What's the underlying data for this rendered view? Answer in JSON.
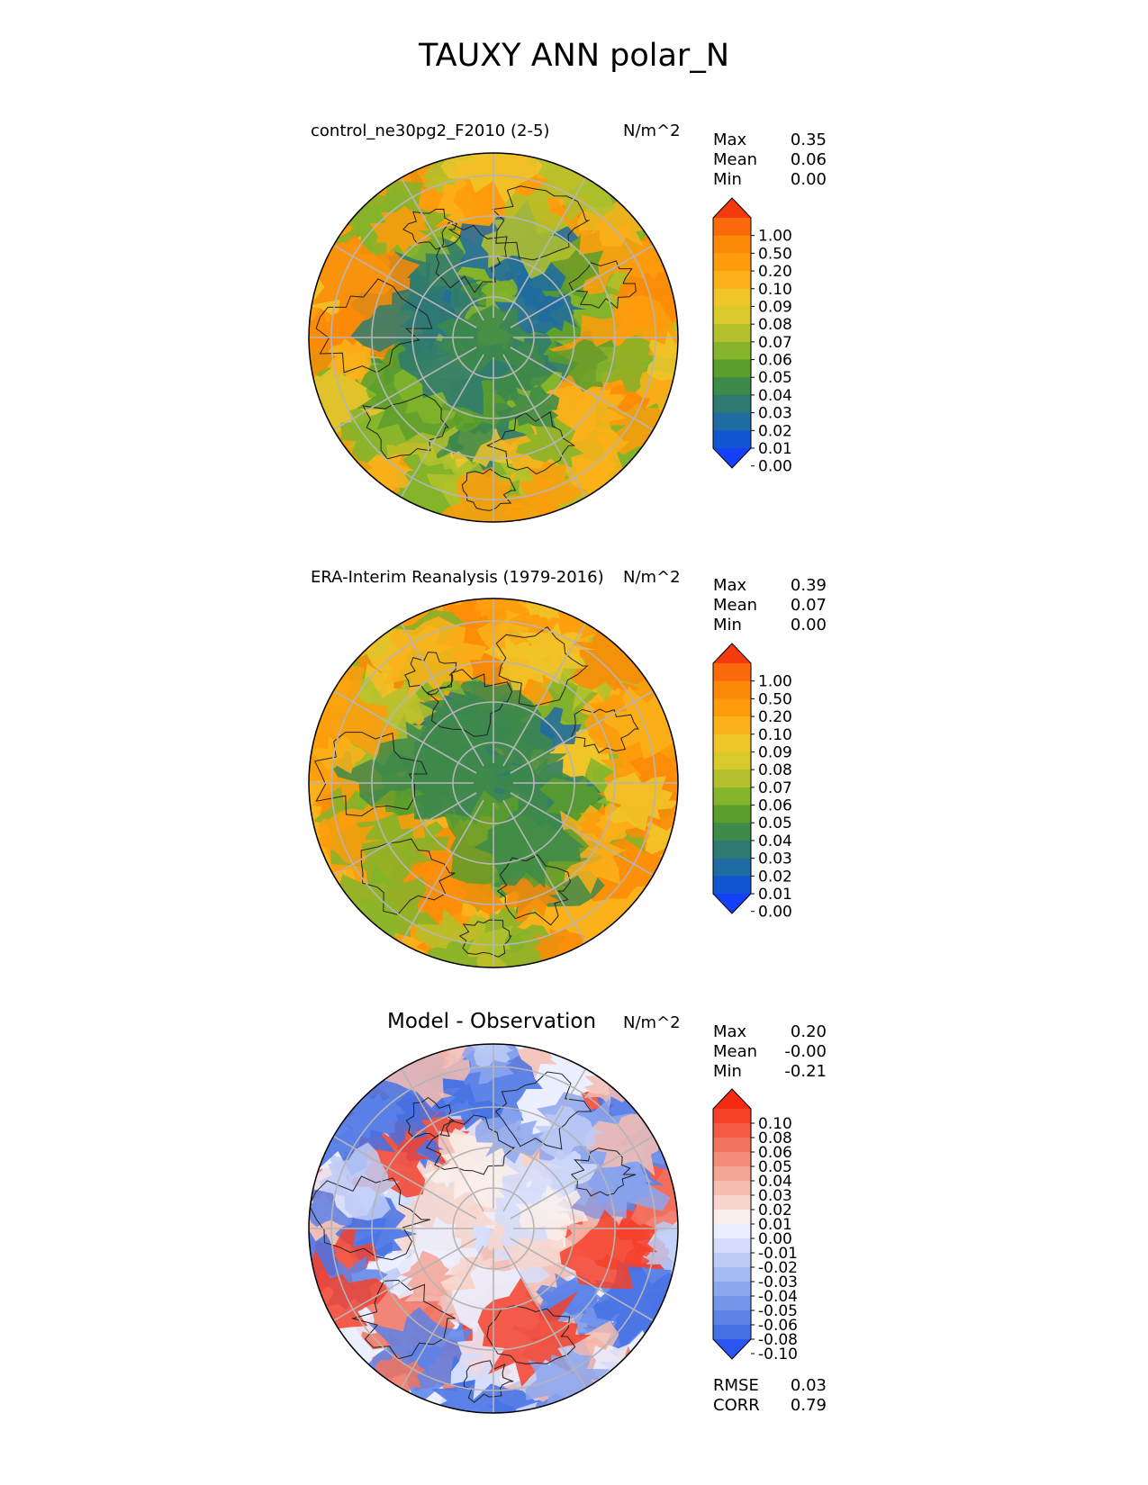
{
  "title": "TAUXY ANN polar_N",
  "chart_data": [
    {
      "type": "heatmap",
      "projection": "polar stereographic, north pole",
      "title": "control_ne30pg2_F2010 (2-5)",
      "units": "N/m^2",
      "stats": [
        {
          "label": "Max",
          "value": "0.35"
        },
        {
          "label": "Mean",
          "value": "0.06"
        },
        {
          "label": "Min",
          "value": "0.00"
        }
      ],
      "colorbar": {
        "levels": [
          "1.00",
          "0.50",
          "0.20",
          "0.10",
          "0.09",
          "0.08",
          "0.07",
          "0.06",
          "0.05",
          "0.04",
          "0.03",
          "0.02",
          "0.01",
          "0.00"
        ],
        "colors": [
          "#f53a0e",
          "#fb6a0a",
          "#fd8a07",
          "#fe9c0c",
          "#fbb11a",
          "#f0c52a",
          "#d9ca2c",
          "#b3c22c",
          "#84b42a",
          "#5a9e2c",
          "#3e8a4a",
          "#2f7a70",
          "#1f6ba2",
          "#1255d0",
          "#1440fa"
        ]
      },
      "extend": "both"
    },
    {
      "type": "heatmap",
      "projection": "polar stereographic, north pole",
      "title": "ERA-Interim Reanalysis (1979-2016)",
      "units": "N/m^2",
      "stats": [
        {
          "label": "Max",
          "value": "0.39"
        },
        {
          "label": "Mean",
          "value": "0.07"
        },
        {
          "label": "Min",
          "value": "0.00"
        }
      ],
      "colorbar": {
        "levels": [
          "1.00",
          "0.50",
          "0.20",
          "0.10",
          "0.09",
          "0.08",
          "0.07",
          "0.06",
          "0.05",
          "0.04",
          "0.03",
          "0.02",
          "0.01",
          "0.00"
        ],
        "colors": [
          "#f53a0e",
          "#fb6a0a",
          "#fd8a07",
          "#fe9c0c",
          "#fbb11a",
          "#f0c52a",
          "#d9ca2c",
          "#b3c22c",
          "#84b42a",
          "#5a9e2c",
          "#3e8a4a",
          "#2f7a70",
          "#1f6ba2",
          "#1255d0",
          "#1440fa"
        ]
      },
      "extend": "both"
    },
    {
      "type": "heatmap",
      "projection": "polar stereographic, north pole",
      "title": "Model - Observation",
      "units": "N/m^2",
      "stats": [
        {
          "label": "Max",
          "value": "0.20"
        },
        {
          "label": "Mean",
          "value": "-0.00"
        },
        {
          "label": "Min",
          "value": "-0.21"
        }
      ],
      "colorbar": {
        "levels": [
          "0.10",
          "0.08",
          "0.06",
          "0.05",
          "0.04",
          "0.03",
          "0.02",
          "0.01",
          "0.00",
          "-0.01",
          "-0.02",
          "-0.03",
          "-0.04",
          "-0.05",
          "-0.06",
          "-0.08",
          "-0.10"
        ],
        "colors": [
          "#f52a10",
          "#f5412a",
          "#f35a44",
          "#f2735f",
          "#f38c7b",
          "#f4a596",
          "#f6bdb1",
          "#f8d6cc",
          "#faeeea",
          "#ecefff",
          "#d5ddfb",
          "#bdcbf7",
          "#a5b9f3",
          "#8da7ef",
          "#7595eb",
          "#5d83e8",
          "#4571e4",
          "#2a55f0"
        ]
      },
      "extend": "both",
      "footer_stats": [
        {
          "label": "RMSE",
          "value": "0.03"
        },
        {
          "label": "CORR",
          "value": "0.79"
        }
      ]
    }
  ]
}
